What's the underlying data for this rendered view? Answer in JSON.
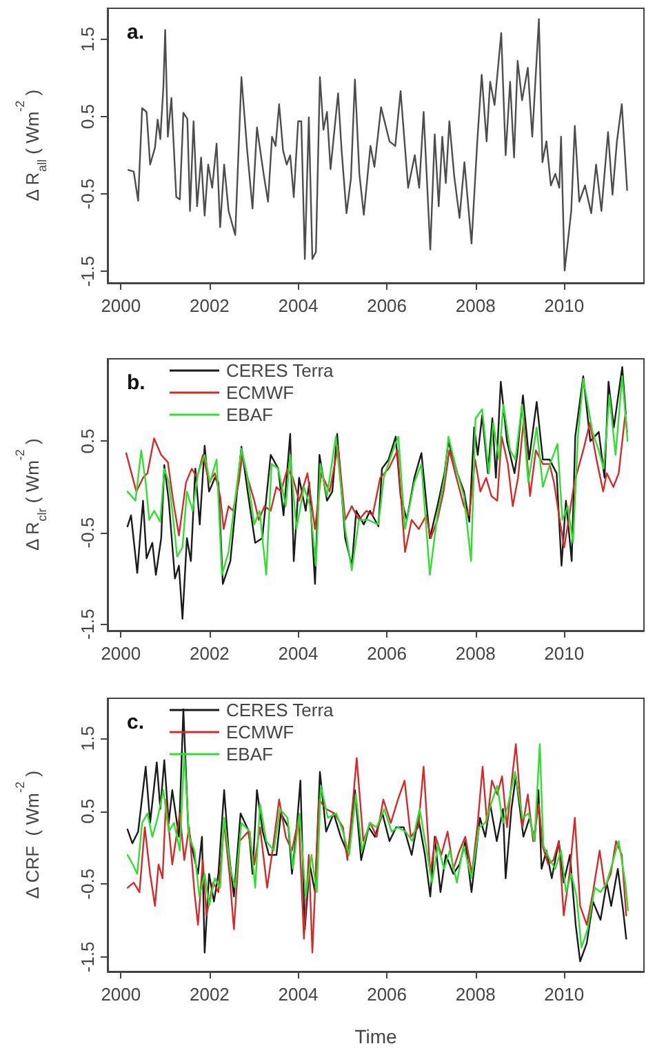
{
  "chart_data": [
    {
      "type": "line",
      "annotations": [
        "a."
      ],
      "ylabel": "Δ R$_{all}$ ( Wm$^{-2}$ )",
      "xlim": [
        1999.7,
        2011.8
      ],
      "xticks": [
        2000,
        2002,
        2004,
        2006,
        2008,
        2010
      ],
      "ylim": [
        -1.65,
        1.9
      ],
      "yticks": [
        -1.5,
        -0.5,
        0.5,
        1.5
      ],
      "grid": false,
      "legend": false,
      "series": [
        {
          "color": "#4d4d4d",
          "x": [
            2000.17,
            2000.29,
            2000.39,
            2000.48,
            2000.58,
            2000.66,
            2000.77,
            2000.83,
            2000.89,
            2000.96,
            2001.0,
            2001.06,
            2001.14,
            2001.25,
            2001.33,
            2001.41,
            2001.5,
            2001.56,
            2001.64,
            2001.72,
            2001.81,
            2001.89,
            2001.97,
            2002.06,
            2002.16,
            2002.24,
            2002.33,
            2002.43,
            2002.58,
            2002.72,
            2002.85,
            2002.97,
            2003.07,
            2003.22,
            2003.32,
            2003.41,
            2003.49,
            2003.57,
            2003.66,
            2003.74,
            2003.82,
            2003.9,
            2004.0,
            2004.07,
            2004.15,
            2004.24,
            2004.32,
            2004.4,
            2004.49,
            2004.57,
            2004.65,
            2004.73,
            2004.9,
            2004.98,
            2005.09,
            2005.19,
            2005.28,
            2005.38,
            2005.48,
            2005.63,
            2005.72,
            2005.87,
            2006.06,
            2006.19,
            2006.31,
            2006.48,
            2006.63,
            2006.73,
            2006.83,
            2006.98,
            2007.08,
            2007.17,
            2007.25,
            2007.33,
            2007.41,
            2007.52,
            2007.64,
            2007.75,
            2007.91,
            2008.04,
            2008.14,
            2008.25,
            2008.33,
            2008.43,
            2008.58,
            2008.68,
            2008.78,
            2008.87,
            2008.95,
            2009.05,
            2009.18,
            2009.28,
            2009.43,
            2009.51,
            2009.6,
            2009.7,
            2009.8,
            2009.89,
            2009.93,
            2010.01,
            2010.16,
            2010.24,
            2010.34,
            2010.47,
            2010.61,
            2010.72,
            2010.84,
            2010.99,
            2011.09,
            2011.19,
            2011.3,
            2011.42
          ],
          "values": [
            -0.19,
            -0.21,
            -0.59,
            0.61,
            0.56,
            -0.12,
            0.1,
            0.46,
            0.21,
            0.89,
            1.62,
            0.24,
            0.74,
            -0.54,
            -0.57,
            0.55,
            0.47,
            -0.72,
            0.44,
            -0.66,
            -0.03,
            -0.78,
            -0.12,
            -0.42,
            0.15,
            -0.93,
            -0.12,
            -0.72,
            -1.03,
            1.01,
            0.06,
            -0.69,
            0.36,
            -0.24,
            -0.6,
            0.24,
            0.12,
            0.66,
            0.06,
            -0.12,
            0.0,
            -0.54,
            0.44,
            0.44,
            -1.34,
            0.49,
            -1.34,
            -1.25,
            1.01,
            0.33,
            0.56,
            -0.18,
            0.8,
            0.06,
            -0.75,
            -0.3,
            0.98,
            -0.24,
            -0.77,
            0.12,
            -0.15,
            0.62,
            0.18,
            0.12,
            0.83,
            -0.42,
            0.0,
            -0.42,
            0.56,
            -1.22,
            0.27,
            -0.66,
            0.24,
            -0.36,
            0.44,
            -0.27,
            -0.81,
            -0.09,
            -1.14,
            0.18,
            1.04,
            0.18,
            0.95,
            0.65,
            1.58,
            0.0,
            0.95,
            -0.03,
            1.22,
            0.71,
            1.13,
            0.24,
            1.76,
            -0.09,
            0.18,
            -0.39,
            -0.24,
            -0.42,
            0.24,
            -1.49,
            -0.72,
            0.38,
            -0.6,
            -0.39,
            -0.75,
            -0.12,
            -0.72,
            0.3,
            -0.51,
            0.18,
            0.66,
            -0.45
          ]
        }
      ]
    },
    {
      "type": "line",
      "annotations": [
        "b."
      ],
      "ylabel": "Δ R$_{clr}$ ( Wm$^{-2}$ )",
      "xlim": [
        1999.7,
        2011.8
      ],
      "xticks": [
        2000,
        2002,
        2004,
        2006,
        2008,
        2010
      ],
      "ylim": [
        -1.57,
        1.4
      ],
      "yticks": [
        -1.5,
        -0.5,
        0.5
      ],
      "grid": false,
      "legend": "top",
      "series": [
        {
          "name": "CERES Terra",
          "color": "#1a1a1a",
          "x": [
            2000.15,
            2000.23,
            2000.37,
            2000.5,
            2000.58,
            2000.71,
            2000.79,
            2000.91,
            2000.98,
            2001.08,
            2001.22,
            2001.31,
            2001.39,
            2001.49,
            2001.58,
            2001.68,
            2001.78,
            2001.89,
            2001.99,
            2002.12,
            2002.2,
            2002.3,
            2002.47,
            2002.72,
            2002.86,
            2003.03,
            2003.19,
            2003.38,
            2003.55,
            2003.67,
            2003.82,
            2003.9,
            2004.02,
            2004.17,
            2004.25,
            2004.38,
            2004.48,
            2004.65,
            2004.77,
            2004.88,
            2005.06,
            2005.21,
            2005.31,
            2005.48,
            2005.62,
            2005.81,
            2005.89,
            2006.04,
            2006.2,
            2006.31,
            2006.45,
            2006.62,
            2006.78,
            2006.97,
            2007.14,
            2007.3,
            2007.39,
            2007.59,
            2007.74,
            2007.86,
            2007.97,
            2008.05,
            2008.15,
            2008.28,
            2008.38,
            2008.46,
            2008.57,
            2008.71,
            2008.88,
            2008.94,
            2009.07,
            2009.21,
            2009.38,
            2009.52,
            2009.67,
            2009.83,
            2009.94,
            2010.04,
            2010.17,
            2010.25,
            2010.43,
            2010.59,
            2010.78,
            2010.91,
            2011.0,
            2011.12,
            2011.31,
            2011.39
          ],
          "values": [
            -0.43,
            -0.31,
            -0.94,
            -0.15,
            -0.78,
            -0.61,
            -0.96,
            -0.56,
            0.24,
            -0.15,
            -1.0,
            -0.86,
            -1.44,
            -0.56,
            -0.81,
            0.2,
            -0.41,
            0.45,
            -0.05,
            0.1,
            0.05,
            -1.06,
            -0.81,
            0.44,
            -0.05,
            -0.61,
            -0.56,
            0.35,
            0.2,
            -0.31,
            0.58,
            -0.81,
            0.1,
            -0.26,
            0.05,
            -1.06,
            0.35,
            -0.15,
            -0.05,
            0.58,
            -0.56,
            -0.86,
            -0.26,
            -0.41,
            -0.26,
            -0.43,
            0.2,
            0.3,
            0.55,
            -0.1,
            -0.36,
            0.1,
            0.37,
            -0.56,
            -0.21,
            0.15,
            0.5,
            0.15,
            -0.05,
            -0.38,
            0.65,
            0.35,
            0.78,
            0.15,
            0.75,
            0.1,
            1.15,
            0.5,
            0.15,
            0.35,
            1.0,
            0.3,
            0.93,
            0.3,
            0.3,
            0.15,
            -0.86,
            -0.15,
            -0.81,
            0.55,
            1.21,
            0.5,
            0.6,
            0.1,
            1.15,
            0.65,
            1.31,
            0.8
          ]
        },
        {
          "name": "ECMWF",
          "color": "#d42a2a",
          "x": [
            2000.12,
            2000.35,
            2000.5,
            2000.6,
            2000.75,
            2000.91,
            2001.06,
            2001.18,
            2001.31,
            2001.47,
            2001.6,
            2001.72,
            2001.85,
            2001.99,
            2002.12,
            2002.24,
            2002.32,
            2002.43,
            2002.53,
            2002.66,
            2002.74,
            2002.86,
            2003.01,
            2003.11,
            2003.24,
            2003.38,
            2003.51,
            2003.61,
            2003.76,
            2003.88,
            2004.02,
            2004.21,
            2004.38,
            2004.52,
            2004.71,
            2004.9,
            2005.06,
            2005.21,
            2005.37,
            2005.54,
            2005.68,
            2005.85,
            2006.04,
            2006.24,
            2006.41,
            2006.56,
            2006.72,
            2006.89,
            2006.99,
            2007.14,
            2007.28,
            2007.41,
            2007.57,
            2007.74,
            2007.86,
            2007.99,
            2008.11,
            2008.24,
            2008.36,
            2008.49,
            2008.59,
            2008.73,
            2008.84,
            2008.96,
            2009.09,
            2009.23,
            2009.36,
            2009.52,
            2009.67,
            2009.77,
            2009.9,
            2010.0,
            2010.1,
            2010.23,
            2010.43,
            2010.58,
            2010.73,
            2010.88,
            2010.96,
            2011.11,
            2011.23,
            2011.38,
            2011.42
          ],
          "values": [
            0.37,
            -0.05,
            0.1,
            0.15,
            0.53,
            0.35,
            0.27,
            -0.15,
            -0.53,
            0.05,
            0.2,
            0.1,
            0.35,
            0.05,
            0.15,
            -0.1,
            -0.46,
            -0.21,
            -0.26,
            0.05,
            0.35,
            0.1,
            -0.15,
            -0.36,
            -0.21,
            -0.26,
            0.0,
            -0.05,
            0.2,
            0.1,
            -0.15,
            0.15,
            -0.46,
            0.15,
            -0.05,
            0.45,
            -0.36,
            -0.21,
            -0.36,
            -0.26,
            -0.31,
            0.1,
            0.2,
            0.4,
            -0.71,
            -0.36,
            -0.46,
            -0.31,
            -0.56,
            -0.36,
            -0.05,
            0.4,
            0.1,
            -0.21,
            -0.31,
            0.3,
            -0.05,
            0.1,
            -0.1,
            -0.15,
            0.55,
            0.25,
            -0.21,
            0.1,
            0.75,
            -0.1,
            0.4,
            0.25,
            0.25,
            0.05,
            -0.36,
            -0.66,
            -0.36,
            0.05,
            0.4,
            0.7,
            0.3,
            -0.05,
            0.15,
            0.0,
            0.15,
            0.8,
            0.6
          ]
        },
        {
          "name": "EBAF",
          "color": "#2ee02e",
          "x": [
            2000.15,
            2000.33,
            2000.46,
            2000.56,
            2000.64,
            2000.75,
            2000.89,
            2000.98,
            2001.08,
            2001.16,
            2001.27,
            2001.39,
            2001.49,
            2001.62,
            2001.74,
            2001.89,
            2002.01,
            2002.16,
            2002.28,
            2002.43,
            2002.72,
            2002.86,
            2003.01,
            2003.13,
            2003.28,
            2003.4,
            2003.55,
            2003.72,
            2003.82,
            2003.96,
            2004.13,
            2004.27,
            2004.4,
            2004.5,
            2004.65,
            2004.85,
            2005.06,
            2005.21,
            2005.37,
            2005.58,
            2005.81,
            2005.93,
            2006.1,
            2006.26,
            2006.41,
            2006.62,
            2006.78,
            2006.97,
            2007.14,
            2007.3,
            2007.39,
            2007.59,
            2007.74,
            2007.9,
            2008.0,
            2008.15,
            2008.3,
            2008.4,
            2008.53,
            2008.63,
            2008.78,
            2008.9,
            2009.05,
            2009.19,
            2009.38,
            2009.52,
            2009.68,
            2009.85,
            2009.96,
            2010.08,
            2010.2,
            2010.31,
            2010.43,
            2010.64,
            2010.78,
            2010.89,
            2011.02,
            2011.16,
            2011.31,
            2011.43
          ],
          "values": [
            -0.05,
            -0.15,
            0.4,
            0.05,
            -0.36,
            -0.26,
            -0.38,
            0.2,
            0.05,
            -0.26,
            -0.76,
            -0.66,
            -0.05,
            -0.26,
            0.15,
            0.35,
            0.05,
            0.3,
            -0.96,
            -0.71,
            0.42,
            0.1,
            -0.41,
            -0.26,
            -0.96,
            0.25,
            0.2,
            -0.21,
            0.35,
            -0.46,
            0.0,
            -0.21,
            -0.86,
            0.25,
            -0.1,
            0.55,
            -0.46,
            -0.91,
            -0.36,
            -0.36,
            -0.41,
            0.1,
            0.35,
            0.55,
            -0.46,
            0.05,
            0.25,
            -0.96,
            -0.31,
            0.1,
            0.55,
            0.15,
            -0.1,
            -0.81,
            0.75,
            0.85,
            0.15,
            0.7,
            0.3,
            0.9,
            0.4,
            0.3,
            0.9,
            0.05,
            0.65,
            0.0,
            0.25,
            0.47,
            -0.36,
            -0.21,
            -0.61,
            0.55,
            1.18,
            0.6,
            0.4,
            0.2,
            1.0,
            0.35,
            1.21,
            0.5
          ]
        }
      ]
    },
    {
      "type": "line",
      "annotations": [
        "c."
      ],
      "ylabel": "Δ CRF  ( Wm$^{-2}$ )",
      "xlabel": "Time",
      "xlim": [
        1999.7,
        2011.8
      ],
      "xticks": [
        2000,
        2002,
        2004,
        2006,
        2008,
        2010
      ],
      "ylim": [
        -1.7,
        2.05
      ],
      "yticks": [
        -1.5,
        -0.5,
        0.5,
        1.5
      ],
      "grid": false,
      "legend": "top",
      "series": [
        {
          "name": "CERES Terra",
          "color": "#1a1a1a",
          "x": [
            2000.15,
            2000.26,
            2000.39,
            2000.56,
            2000.66,
            2000.81,
            2000.89,
            2000.98,
            2001.08,
            2001.16,
            2001.31,
            2001.41,
            2001.52,
            2001.62,
            2001.74,
            2001.83,
            2001.89,
            2001.99,
            2002.1,
            2002.2,
            2002.33,
            2002.43,
            2002.55,
            2002.7,
            2002.89,
            2002.97,
            2003.07,
            2003.2,
            2003.34,
            2003.51,
            2003.61,
            2003.78,
            2003.86,
            2003.95,
            2004.05,
            2004.15,
            2004.26,
            2004.38,
            2004.49,
            2004.63,
            2004.8,
            2004.96,
            2005.13,
            2005.28,
            2005.42,
            2005.59,
            2005.73,
            2005.9,
            2006.06,
            2006.21,
            2006.38,
            2006.56,
            2006.71,
            2006.86,
            2006.98,
            2007.08,
            2007.21,
            2007.33,
            2007.5,
            2007.64,
            2007.77,
            2007.91,
            2008.1,
            2008.22,
            2008.33,
            2008.48,
            2008.62,
            2008.68,
            2008.81,
            2008.91,
            2009.08,
            2009.22,
            2009.33,
            2009.42,
            2009.49,
            2009.6,
            2009.72,
            2009.88,
            2009.99,
            2010.13,
            2010.26,
            2010.36,
            2010.51,
            2010.65,
            2010.82,
            2010.96,
            2011.06,
            2011.21,
            2011.33,
            2011.4
          ],
          "values": [
            0.25,
            0.06,
            0.22,
            1.11,
            0.34,
            1.17,
            0.53,
            1.2,
            0.34,
            0.79,
            0.15,
            1.9,
            0.28,
            -0.04,
            -0.36,
            0.15,
            -1.44,
            -0.36,
            -0.74,
            -0.36,
            0.79,
            -0.04,
            -0.67,
            0.47,
            0.22,
            -0.36,
            0.79,
            0.22,
            -0.1,
            -0.1,
            0.47,
            0.28,
            -0.36,
            0.15,
            0.92,
            -1.12,
            -0.23,
            -0.61,
            1.04,
            0.22,
            0.47,
            0.15,
            -0.1,
            0.79,
            -0.17,
            0.28,
            0.15,
            0.47,
            0.09,
            0.28,
            0.28,
            -0.1,
            0.41,
            -0.1,
            -0.67,
            0.15,
            -0.61,
            -0.1,
            -0.36,
            -0.23,
            0.09,
            -0.61,
            0.41,
            0.15,
            0.6,
            0.09,
            0.53,
            -0.42,
            0.53,
            0.98,
            0.15,
            0.41,
            0.09,
            0.79,
            -0.29,
            -0.04,
            -0.42,
            0.09,
            -0.48,
            -0.1,
            -1.06,
            -1.56,
            -1.31,
            -0.74,
            -0.99,
            -0.48,
            -0.8,
            -0.29,
            -0.86,
            -1.25
          ]
        },
        {
          "name": "ECMWF",
          "color": "#d42a2a",
          "x": [
            2000.15,
            2000.29,
            2000.42,
            2000.54,
            2000.66,
            2000.77,
            2000.85,
            2000.94,
            2001.02,
            2001.16,
            2001.33,
            2001.43,
            2001.54,
            2001.66,
            2001.74,
            2001.85,
            2001.93,
            2002.08,
            2002.2,
            2002.33,
            2002.45,
            2002.55,
            2002.68,
            2002.87,
            2003.01,
            2003.14,
            2003.3,
            2003.45,
            2003.57,
            2003.72,
            2003.86,
            2004.01,
            2004.13,
            2004.24,
            2004.32,
            2004.47,
            2004.63,
            2004.82,
            2005.01,
            2005.11,
            2005.23,
            2005.32,
            2005.47,
            2005.63,
            2005.77,
            2005.92,
            2006.09,
            2006.25,
            2006.4,
            2006.54,
            2006.71,
            2006.83,
            2006.98,
            2007.1,
            2007.23,
            2007.37,
            2007.5,
            2007.64,
            2007.77,
            2007.92,
            2008.05,
            2008.16,
            2008.26,
            2008.37,
            2008.49,
            2008.6,
            2008.71,
            2008.83,
            2008.91,
            2009.06,
            2009.18,
            2009.3,
            2009.43,
            2009.51,
            2009.64,
            2009.76,
            2009.88,
            2009.99,
            2010.12,
            2010.24,
            2010.36,
            2010.51,
            2010.65,
            2010.8,
            2010.92,
            2011.05,
            2011.17,
            2011.3,
            2011.4
          ],
          "values": [
            -0.55,
            -0.48,
            -0.61,
            0.28,
            -0.36,
            -0.8,
            -0.23,
            -0.42,
            0.66,
            -0.23,
            0.47,
            -0.17,
            0.28,
            -0.61,
            -1.06,
            -0.17,
            -0.93,
            -0.48,
            -0.61,
            0.34,
            -0.36,
            -1.12,
            0.09,
            0.22,
            -0.23,
            0.28,
            -0.55,
            0.09,
            0.66,
            0.15,
            -0.04,
            0.41,
            -1.25,
            -0.1,
            -1.44,
            0.66,
            0.53,
            0.47,
            0.28,
            -0.17,
            0.6,
            1.23,
            0.09,
            0.34,
            0.15,
            0.66,
            0.34,
            0.66,
            0.92,
            0.15,
            0.28,
            1.11,
            -0.36,
            0.15,
            -0.1,
            0.22,
            -0.29,
            -0.04,
            0.15,
            -0.36,
            0.34,
            1.11,
            0.34,
            0.92,
            0.73,
            0.98,
            0.28,
            0.98,
            1.42,
            0.28,
            0.73,
            0.09,
            0.6,
            0.03,
            -0.23,
            -0.17,
            0.09,
            -0.93,
            -0.36,
            0.41,
            -0.8,
            -1.06,
            -0.61,
            -0.04,
            -0.55,
            -0.36,
            0.09,
            -0.1,
            -0.93
          ]
        },
        {
          "name": "EBAF",
          "color": "#2ee02e",
          "x": [
            2000.15,
            2000.27,
            2000.37,
            2000.48,
            2000.6,
            2000.71,
            2000.83,
            2000.96,
            2001.08,
            2001.2,
            2001.33,
            2001.43,
            2001.54,
            2001.66,
            2001.77,
            2001.89,
            2001.99,
            2002.12,
            2002.24,
            2002.33,
            2002.47,
            2002.58,
            2002.72,
            2002.91,
            2003.03,
            2003.14,
            2003.28,
            2003.45,
            2003.59,
            2003.76,
            2003.88,
            2004.03,
            2004.17,
            2004.3,
            2004.42,
            2004.51,
            2004.67,
            2004.86,
            2005.01,
            2005.15,
            2005.3,
            2005.44,
            2005.61,
            2005.77,
            2005.94,
            2006.11,
            2006.25,
            2006.42,
            2006.58,
            2006.74,
            2006.88,
            2007.02,
            2007.15,
            2007.29,
            2007.42,
            2007.58,
            2007.73,
            2007.91,
            2008.08,
            2008.22,
            2008.35,
            2008.49,
            2008.62,
            2008.74,
            2008.89,
            2009.06,
            2009.2,
            2009.33,
            2009.45,
            2009.53,
            2009.68,
            2009.8,
            2009.93,
            2010.04,
            2010.16,
            2010.28,
            2010.39,
            2010.53,
            2010.69,
            2010.82,
            2010.96,
            2011.08,
            2011.23,
            2011.38,
            2011.44
          ],
          "values": [
            -0.1,
            -0.23,
            -0.36,
            0.34,
            0.47,
            0.15,
            0.41,
            0.79,
            0.22,
            0.34,
            -0.04,
            1.3,
            0.15,
            -0.04,
            -0.67,
            -0.36,
            -0.8,
            -0.42,
            -0.55,
            0.41,
            -0.29,
            -0.55,
            0.34,
            0.22,
            -0.55,
            0.6,
            0.09,
            -0.04,
            0.53,
            0.41,
            -0.29,
            0.47,
            -0.67,
            -0.1,
            -0.61,
            0.85,
            0.41,
            0.47,
            0.22,
            -0.1,
            0.73,
            -0.04,
            0.34,
            0.28,
            0.53,
            0.22,
            0.28,
            0.22,
            0.09,
            0.53,
            0.03,
            -0.48,
            0.03,
            -0.29,
            -0.04,
            -0.48,
            0.03,
            -0.42,
            0.28,
            0.34,
            0.6,
            0.85,
            0.34,
            0.6,
            1.04,
            0.41,
            0.47,
            0.09,
            1.42,
            0.03,
            -0.17,
            -0.29,
            -0.04,
            -0.61,
            -0.36,
            -0.67,
            -1.37,
            -1.12,
            -0.55,
            -0.61,
            -0.48,
            -0.23,
            0.09,
            -0.48,
            -0.86
          ]
        }
      ]
    }
  ]
}
